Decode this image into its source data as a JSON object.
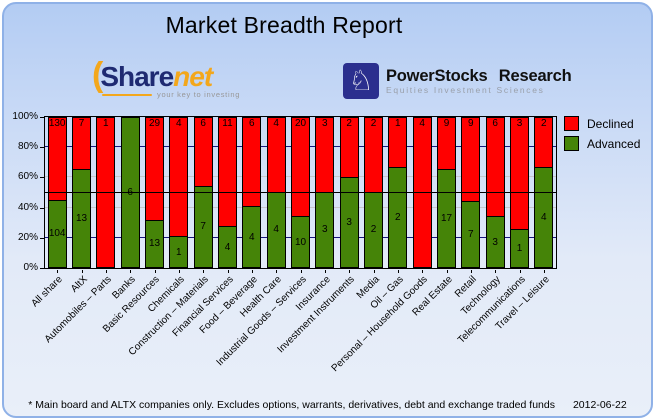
{
  "title": "Market Breadth Report",
  "logos": {
    "sharenet": {
      "paren": "(",
      "share": "Share",
      "net": "net",
      "tagline": "your key to investing",
      "navy": "#1e2a72",
      "orange": "#f3a71c"
    },
    "powerstocks": {
      "icon": "chess-knight",
      "icon_glyph": "♘",
      "name": "PowerStocks Research",
      "subtitle": "Equities Investment Sciences"
    }
  },
  "legend": [
    {
      "label": "Declined",
      "color": "#ff0000"
    },
    {
      "label": "Advanced",
      "color": "#458408"
    }
  ],
  "footer": {
    "note": "* Main board and ALTX companies only. Excludes options, warrants, derivatives, debt and exchange traded funds",
    "date": "2012-06-22"
  },
  "chart_data": {
    "type": "bar",
    "stacked": true,
    "normalized_to_100_percent": true,
    "title": "Market Breadth Report",
    "categories": [
      "All share",
      "AltX",
      "Automobiles – Parts",
      "Banks",
      "Basic Resources",
      "Chemicals",
      "Construction – Materials",
      "Financial Services",
      "Food – Beverage",
      "Health Care",
      "Industrial Goods – Services",
      "Insurance",
      "Investment Instruments",
      "Media",
      "Oil – Gas",
      "Personal – Household Goods",
      "Real Estate",
      "Retail",
      "Technology",
      "Telecommunications",
      "Travel – Leisure"
    ],
    "series": [
      {
        "name": "Declined",
        "color": "#ff0000",
        "values": [
          130,
          7,
          1,
          0,
          29,
          4,
          6,
          11,
          6,
          4,
          20,
          3,
          2,
          2,
          1,
          4,
          9,
          9,
          6,
          3,
          2
        ]
      },
      {
        "name": "Advanced",
        "color": "#458408",
        "values": [
          104,
          13,
          0,
          6,
          13,
          1,
          7,
          4,
          4,
          4,
          10,
          3,
          3,
          2,
          2,
          0,
          17,
          7,
          3,
          1,
          4
        ]
      }
    ],
    "ylim": [
      0,
      100
    ],
    "y_ticks": [
      {
        "label": "0%",
        "value": 0
      },
      {
        "label": "20%",
        "value": 20
      },
      {
        "label": "40%",
        "value": 40
      },
      {
        "label": "60%",
        "value": 60
      },
      {
        "label": "80%",
        "value": 80
      },
      {
        "label": "100%",
        "value": 100
      }
    ],
    "gridlines": [
      {
        "value": 20,
        "color": "#16167e"
      },
      {
        "value": 40,
        "color": "#c6c6cc"
      },
      {
        "value": 60,
        "color": "#c6c6cc"
      },
      {
        "value": 80,
        "color": "#16167e"
      }
    ],
    "reference_line": {
      "value": 50,
      "color": "#000000"
    },
    "legend_position": "top-right",
    "bar_border_color": "#000000"
  }
}
